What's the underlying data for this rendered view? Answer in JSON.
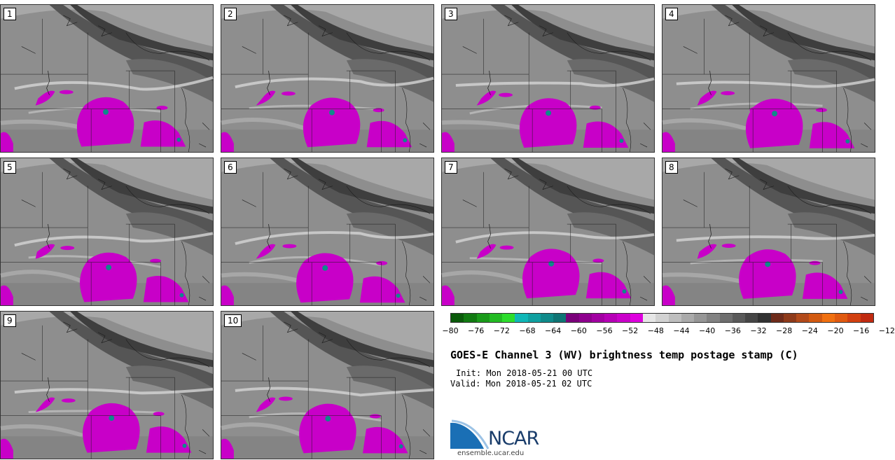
{
  "panels": [
    {
      "label": "1"
    },
    {
      "label": "2"
    },
    {
      "label": "3"
    },
    {
      "label": "4"
    },
    {
      "label": "5"
    },
    {
      "label": "6"
    },
    {
      "label": "7"
    },
    {
      "label": "8"
    },
    {
      "label": "9"
    },
    {
      "label": "10"
    }
  ],
  "colorbar": {
    "ticks": [
      "−80",
      "−76",
      "−72",
      "−68",
      "−64",
      "−60",
      "−56",
      "−52",
      "−48",
      "−44",
      "−40",
      "−36",
      "−32",
      "−28",
      "−24",
      "−20",
      "−16",
      "−12"
    ],
    "colors": [
      "#0a5a0a",
      "#117a11",
      "#1a9a1a",
      "#23bb23",
      "#2cdd2c",
      "#0fb7b7",
      "#0fa0a0",
      "#0f8a8a",
      "#0f7474",
      "#7a007a",
      "#8e008e",
      "#a200a2",
      "#b600b6",
      "#ca00ca",
      "#de00de",
      "#e6e6e6",
      "#d2d2d2",
      "#bebebe",
      "#aaaaaa",
      "#969696",
      "#828282",
      "#6e6e6e",
      "#5a5a5a",
      "#464646",
      "#323232",
      "#6e2b1a",
      "#8e3a1a",
      "#b24a1a",
      "#d25a10",
      "#f07010",
      "#e05a10",
      "#d24010",
      "#c02a10"
    ]
  },
  "title": "GOES-E Channel 3 (WV) brightness temp postage stamp (C)",
  "init": "Init: Mon 2018-05-21 00 UTC",
  "valid": "Valid: Mon 2018-05-21 02 UTC",
  "logo": {
    "name": "NCAR",
    "url": "ensemble.ucar.edu"
  }
}
